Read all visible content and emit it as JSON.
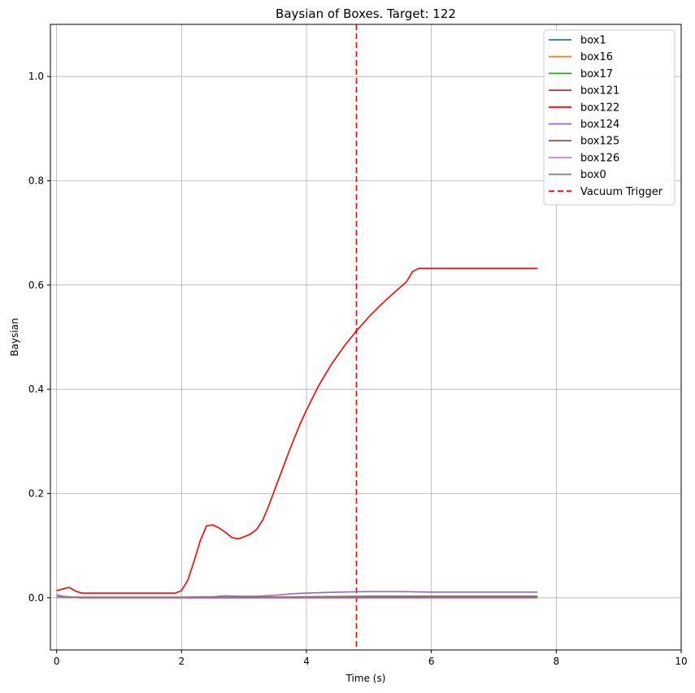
{
  "chart_data": {
    "type": "line",
    "title": "Baysian of Boxes. Target: 122",
    "xlabel": "Time (s)",
    "ylabel": "Baysian",
    "xlim": [
      -0.1,
      10
    ],
    "ylim": [
      -0.1,
      1.1
    ],
    "x_ticks": [
      0,
      2,
      4,
      6,
      8,
      10
    ],
    "y_ticks": [
      0.0,
      0.2,
      0.4,
      0.6,
      0.8,
      1.0
    ],
    "x_tick_labels": [
      "0",
      "2",
      "4",
      "6",
      "8",
      "10"
    ],
    "y_tick_labels": [
      "0.0",
      "0.2",
      "0.4",
      "0.6",
      "0.8",
      "1.0"
    ],
    "grid": true,
    "legend_position": "top-right",
    "series": [
      {
        "name": "box1",
        "color": "#1f77b4",
        "style": "solid",
        "x": [
          0,
          0.4,
          1,
          2,
          3,
          4,
          5,
          6,
          7,
          7.7
        ],
        "y": [
          0.001,
          0.0,
          0.0,
          0.0,
          0.0,
          0.0,
          0.0,
          0.0,
          0.0,
          0.0
        ]
      },
      {
        "name": "box16",
        "color": "#ff7f0e",
        "style": "solid",
        "x": [
          0,
          0.4,
          1,
          2,
          3,
          4,
          5,
          6,
          7,
          7.7
        ],
        "y": [
          0.001,
          0.0,
          0.0,
          0.0,
          0.0,
          0.0,
          0.0,
          0.0,
          0.0,
          0.0
        ]
      },
      {
        "name": "box17",
        "color": "#2ca02c",
        "style": "solid",
        "x": [
          0,
          0.4,
          1,
          2,
          3,
          4,
          5,
          6,
          7,
          7.7
        ],
        "y": [
          0.001,
          0.0,
          0.0,
          0.0,
          0.0,
          0.0,
          0.0,
          0.0,
          0.0,
          0.0
        ]
      },
      {
        "name": "box121",
        "color": "#d62728",
        "style": "solid",
        "x": [
          0,
          0.4,
          1,
          2,
          3,
          4,
          5,
          6,
          7,
          7.7
        ],
        "y": [
          0.001,
          0.0,
          0.0,
          0.0,
          0.0,
          0.001,
          0.001,
          0.001,
          0.001,
          0.001
        ]
      },
      {
        "name": "box122",
        "color": "#ff0000",
        "style": "solid",
        "x": [
          0,
          0.1,
          0.2,
          0.3,
          0.4,
          0.5,
          1.0,
          1.5,
          1.9,
          2.0,
          2.1,
          2.2,
          2.3,
          2.4,
          2.5,
          2.6,
          2.7,
          2.8,
          2.9,
          3.0,
          3.1,
          3.2,
          3.3,
          3.4,
          3.5,
          3.6,
          3.7,
          3.8,
          3.9,
          4.0,
          4.2,
          4.4,
          4.6,
          4.8,
          5.0,
          5.2,
          5.4,
          5.6,
          5.7,
          5.8,
          6.0,
          6.5,
          7.0,
          7.7
        ],
        "y": [
          0.014,
          0.017,
          0.02,
          0.013,
          0.009,
          0.009,
          0.009,
          0.009,
          0.009,
          0.014,
          0.034,
          0.07,
          0.11,
          0.138,
          0.14,
          0.134,
          0.126,
          0.116,
          0.113,
          0.117,
          0.122,
          0.131,
          0.149,
          0.178,
          0.21,
          0.242,
          0.274,
          0.305,
          0.334,
          0.36,
          0.408,
          0.448,
          0.482,
          0.512,
          0.539,
          0.563,
          0.585,
          0.606,
          0.626,
          0.632,
          0.632,
          0.632,
          0.632,
          0.632
        ]
      },
      {
        "name": "box124",
        "color": "#9467bd",
        "style": "solid",
        "x": [
          0,
          0.1,
          0.3,
          1,
          2,
          2.3,
          2.5,
          2.7,
          2.9,
          3.2,
          3.5,
          3.8,
          4.0,
          4.5,
          5.0,
          5.5,
          6.0,
          7.0,
          7.7
        ],
        "y": [
          0.006,
          0.003,
          0.001,
          0.001,
          0.001,
          0.002,
          0.002,
          0.004,
          0.003,
          0.003,
          0.005,
          0.008,
          0.009,
          0.011,
          0.012,
          0.012,
          0.011,
          0.011,
          0.011
        ]
      },
      {
        "name": "box125",
        "color": "#8c564b",
        "style": "solid",
        "x": [
          0,
          0.4,
          1,
          2,
          3,
          4,
          5,
          6,
          7,
          7.7
        ],
        "y": [
          0.002,
          0.001,
          0.001,
          0.001,
          0.001,
          0.002,
          0.003,
          0.003,
          0.003,
          0.003
        ]
      },
      {
        "name": "box126",
        "color": "#e377c2",
        "style": "solid",
        "x": [
          0,
          0.4,
          1,
          2,
          3,
          4,
          5,
          6,
          7,
          7.7
        ],
        "y": [
          0.001,
          0.0,
          0.0,
          0.0,
          0.0,
          0.0,
          0.0,
          0.0,
          0.0,
          0.0
        ]
      },
      {
        "name": "box0",
        "color": "#7f7f7f",
        "style": "solid",
        "x": [
          0,
          0.4,
          1,
          2,
          3,
          4,
          5,
          6,
          7,
          7.7
        ],
        "y": [
          0.002,
          0.001,
          0.001,
          0.001,
          0.001,
          0.001,
          0.001,
          0.001,
          0.001,
          0.001
        ]
      }
    ],
    "vlines": [
      {
        "name": "Vacuum Trigger",
        "x": 4.8,
        "color": "#ff0000",
        "style": "dashed"
      }
    ]
  }
}
